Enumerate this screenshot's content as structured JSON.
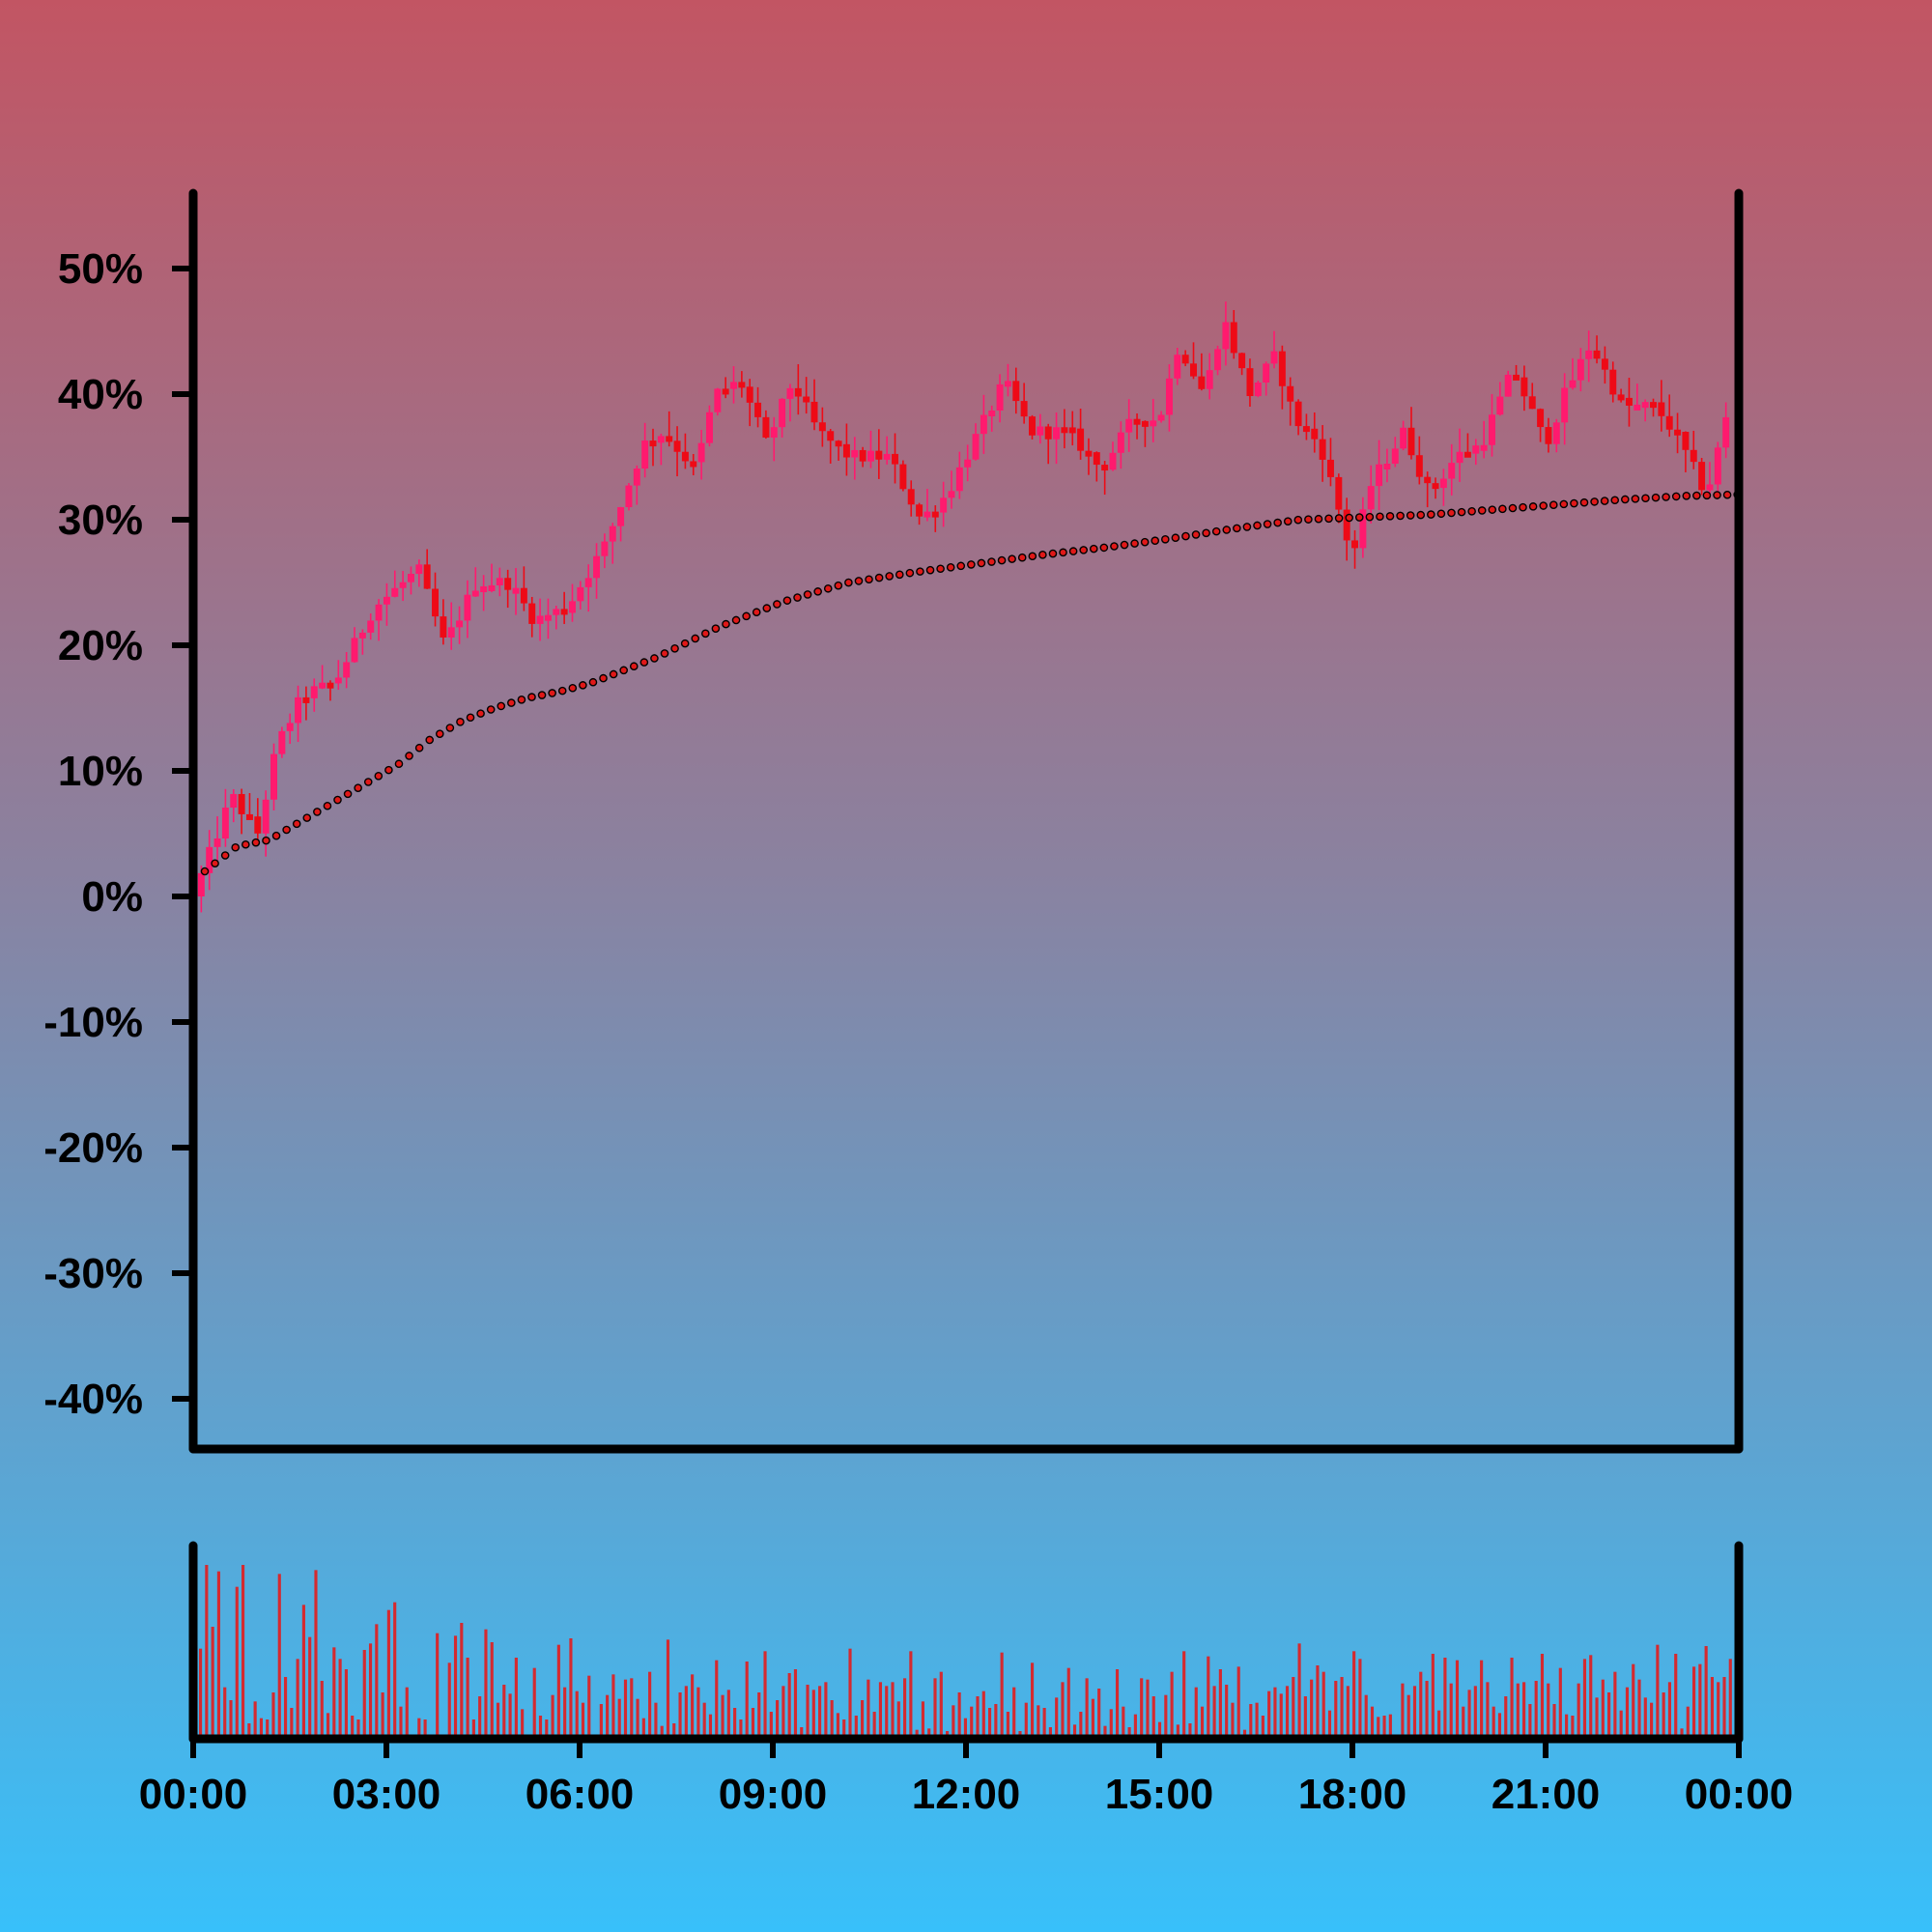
{
  "colors": {
    "background_top": "#c25563",
    "background_bottom": "#38c0fa",
    "up_candle": "#ff1a6e",
    "down_candle": "#ee0a16",
    "moving_average_dot": "#e01818",
    "moving_average_outline": "#000000",
    "volume_bar": "#d42a30",
    "axis": "#000000"
  },
  "chart_data": [
    {
      "type": "candlestick",
      "title": "",
      "xlabel": "",
      "ylabel": "",
      "ylim": [
        -44,
        56
      ],
      "y_ticks": [
        50,
        40,
        30,
        20,
        10,
        0,
        -10,
        -20,
        -30,
        -40
      ],
      "y_tick_labels": [
        "50%",
        "40%",
        "30%",
        "20%",
        "10%",
        "0%",
        "-10%",
        "-20%",
        "-30%",
        "-40%"
      ],
      "x_range_hours": [
        0,
        24
      ],
      "x_ticks_hours": [
        0,
        3,
        6,
        9,
        12,
        15,
        18,
        21,
        24
      ],
      "x_tick_labels": [
        "00:00",
        "03:00",
        "06:00",
        "09:00",
        "12:00",
        "15:00",
        "18:00",
        "21:00",
        "00:00"
      ],
      "grid": false,
      "price_path": {
        "hours": [
          0,
          0.6,
          1.0,
          1.3,
          1.7,
          2.2,
          2.8,
          3.5,
          3.9,
          4.4,
          4.9,
          5.3,
          5.8,
          6.4,
          7.0,
          7.3,
          7.8,
          8.1,
          8.5,
          8.9,
          9.3,
          9.7,
          10.2,
          10.8,
          11.3,
          11.7,
          12.2,
          12.6,
          13.0,
          13.6,
          14.1,
          14.6,
          15.0,
          15.3,
          15.7,
          16.0,
          16.4,
          16.8,
          17.1,
          17.5,
          18.0,
          18.3,
          18.8,
          19.2,
          19.6,
          20.0,
          20.5,
          21.0,
          21.3,
          21.7,
          22.2,
          22.7,
          23.0,
          23.5,
          23.8
        ],
        "values": [
          0,
          8,
          5,
          12,
          16,
          17,
          23,
          26,
          20,
          25,
          25,
          22,
          23,
          28,
          36,
          37,
          34,
          40,
          41,
          36,
          41,
          37,
          35,
          35,
          30,
          32,
          37,
          41,
          37,
          37,
          34,
          38,
          38,
          44,
          40,
          46,
          40,
          43,
          38,
          36,
          27,
          33,
          37,
          32,
          35,
          36,
          42,
          36,
          40,
          44,
          39,
          39,
          37,
          32,
          38
        ]
      },
      "moving_average": {
        "hours": [
          0,
          0.5,
          1.0,
          1.5,
          2.0,
          2.5,
          3.0,
          3.5,
          4.0,
          4.5,
          5.0,
          5.5,
          6.0,
          6.5,
          7.0,
          8.0,
          9.0,
          10.0,
          11.0,
          12.0,
          13.0,
          14.0,
          15.0,
          16.0,
          17.0,
          18.0,
          19.0,
          20.0,
          21.0,
          22.0,
          23.0,
          23.8
        ],
        "values": [
          2,
          4,
          4.5,
          6,
          7.5,
          9,
          10.5,
          12.5,
          14,
          15,
          15.8,
          16.3,
          17,
          18,
          19,
          21.5,
          23.5,
          25,
          25.8,
          26.5,
          27.2,
          27.8,
          28.5,
          29.3,
          30,
          30.2,
          30.4,
          30.8,
          31.2,
          31.6,
          31.9,
          32
        ]
      }
    },
    {
      "type": "bar",
      "title": "",
      "xlabel": "",
      "ylabel": "",
      "x_range_hours": [
        0,
        24
      ],
      "values": [
        70,
        135,
        87,
        130,
        40,
        30,
        118,
        135,
        12,
        29,
        16,
        15,
        36,
        128,
        48,
        24,
        62,
        104,
        79,
        131,
        45,
        20,
        71,
        62,
        54,
        18,
        15,
        69,
        74,
        89,
        36,
        100,
        106,
        25,
        40,
        0,
        16,
        15,
        0,
        82,
        0,
        59,
        80,
        90,
        63,
        15,
        33,
        85,
        75,
        28,
        42,
        35,
        63,
        23,
        0,
        55,
        18,
        15,
        34,
        73,
        40,
        78,
        37,
        28,
        49,
        0,
        27,
        34,
        50,
        31,
        46,
        47,
        31,
        16,
        52,
        28,
        10,
        77,
        12,
        36,
        41,
        50,
        40,
        28,
        19,
        61,
        34,
        38,
        24,
        15,
        60,
        24,
        36,
        68,
        21,
        30,
        41,
        51,
        54,
        9,
        42,
        38,
        41,
        44,
        30,
        20,
        15,
        70,
        18,
        30,
        46,
        21,
        44,
        41,
        44,
        29,
        47,
        68,
        7,
        29,
        8,
        47,
        52,
        6,
        26,
        36,
        16,
        25,
        33,
        37,
        24,
        27,
        67,
        21,
        40,
        6,
        28,
        59,
        26,
        24,
        9,
        32,
        44,
        55,
        11,
        21,
        47,
        31,
        39,
        10,
        23,
        54,
        25,
        9,
        19,
        47,
        46,
        33,
        13,
        34,
        52,
        11,
        68,
        12,
        40,
        25,
        64,
        41,
        54,
        42,
        28,
        56,
        7,
        27,
        28,
        18,
        37,
        40,
        35,
        41,
        48,
        74,
        33,
        46,
        57,
        52,
        22,
        45,
        48,
        41,
        68,
        62,
        34,
        25,
        17,
        18,
        19,
        0,
        43,
        34,
        41,
        52,
        45,
        66,
        22,
        63,
        43,
        61,
        25,
        38,
        41,
        61,
        44,
        25,
        20,
        33,
        63,
        43,
        44,
        27,
        45,
        66,
        43,
        27,
        55,
        19,
        18,
        43,
        62,
        65,
        32,
        46,
        36,
        52,
        22,
        40,
        58,
        46,
        32,
        28,
        73,
        36,
        44,
        66,
        8,
        25,
        56,
        58,
        72,
        48,
        44,
        48,
        62
      ]
    }
  ]
}
